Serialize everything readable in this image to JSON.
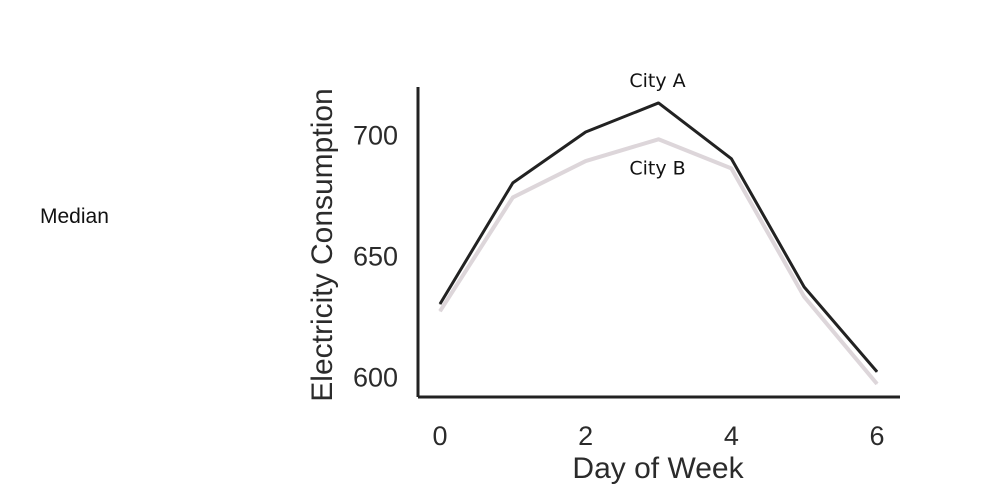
{
  "side_label": "Median",
  "chart_data": {
    "type": "line",
    "title": "",
    "xlabel": "Day of Week",
    "ylabel": "Electricity Consumption",
    "x": [
      0,
      1,
      2,
      3,
      4,
      5,
      6
    ],
    "xticks": [
      0,
      2,
      4,
      6
    ],
    "yticks": [
      600,
      650,
      700
    ],
    "xlim": [
      0,
      6
    ],
    "ylim": [
      592,
      720
    ],
    "grid": false,
    "series": [
      {
        "name": "City A",
        "color": "#222222",
        "values": [
          630,
          680,
          701,
          713,
          690,
          637,
          602
        ]
      },
      {
        "name": "City B",
        "color": "#ddd6da",
        "values": [
          627,
          674,
          689,
          698,
          686,
          633,
          597
        ]
      }
    ]
  }
}
